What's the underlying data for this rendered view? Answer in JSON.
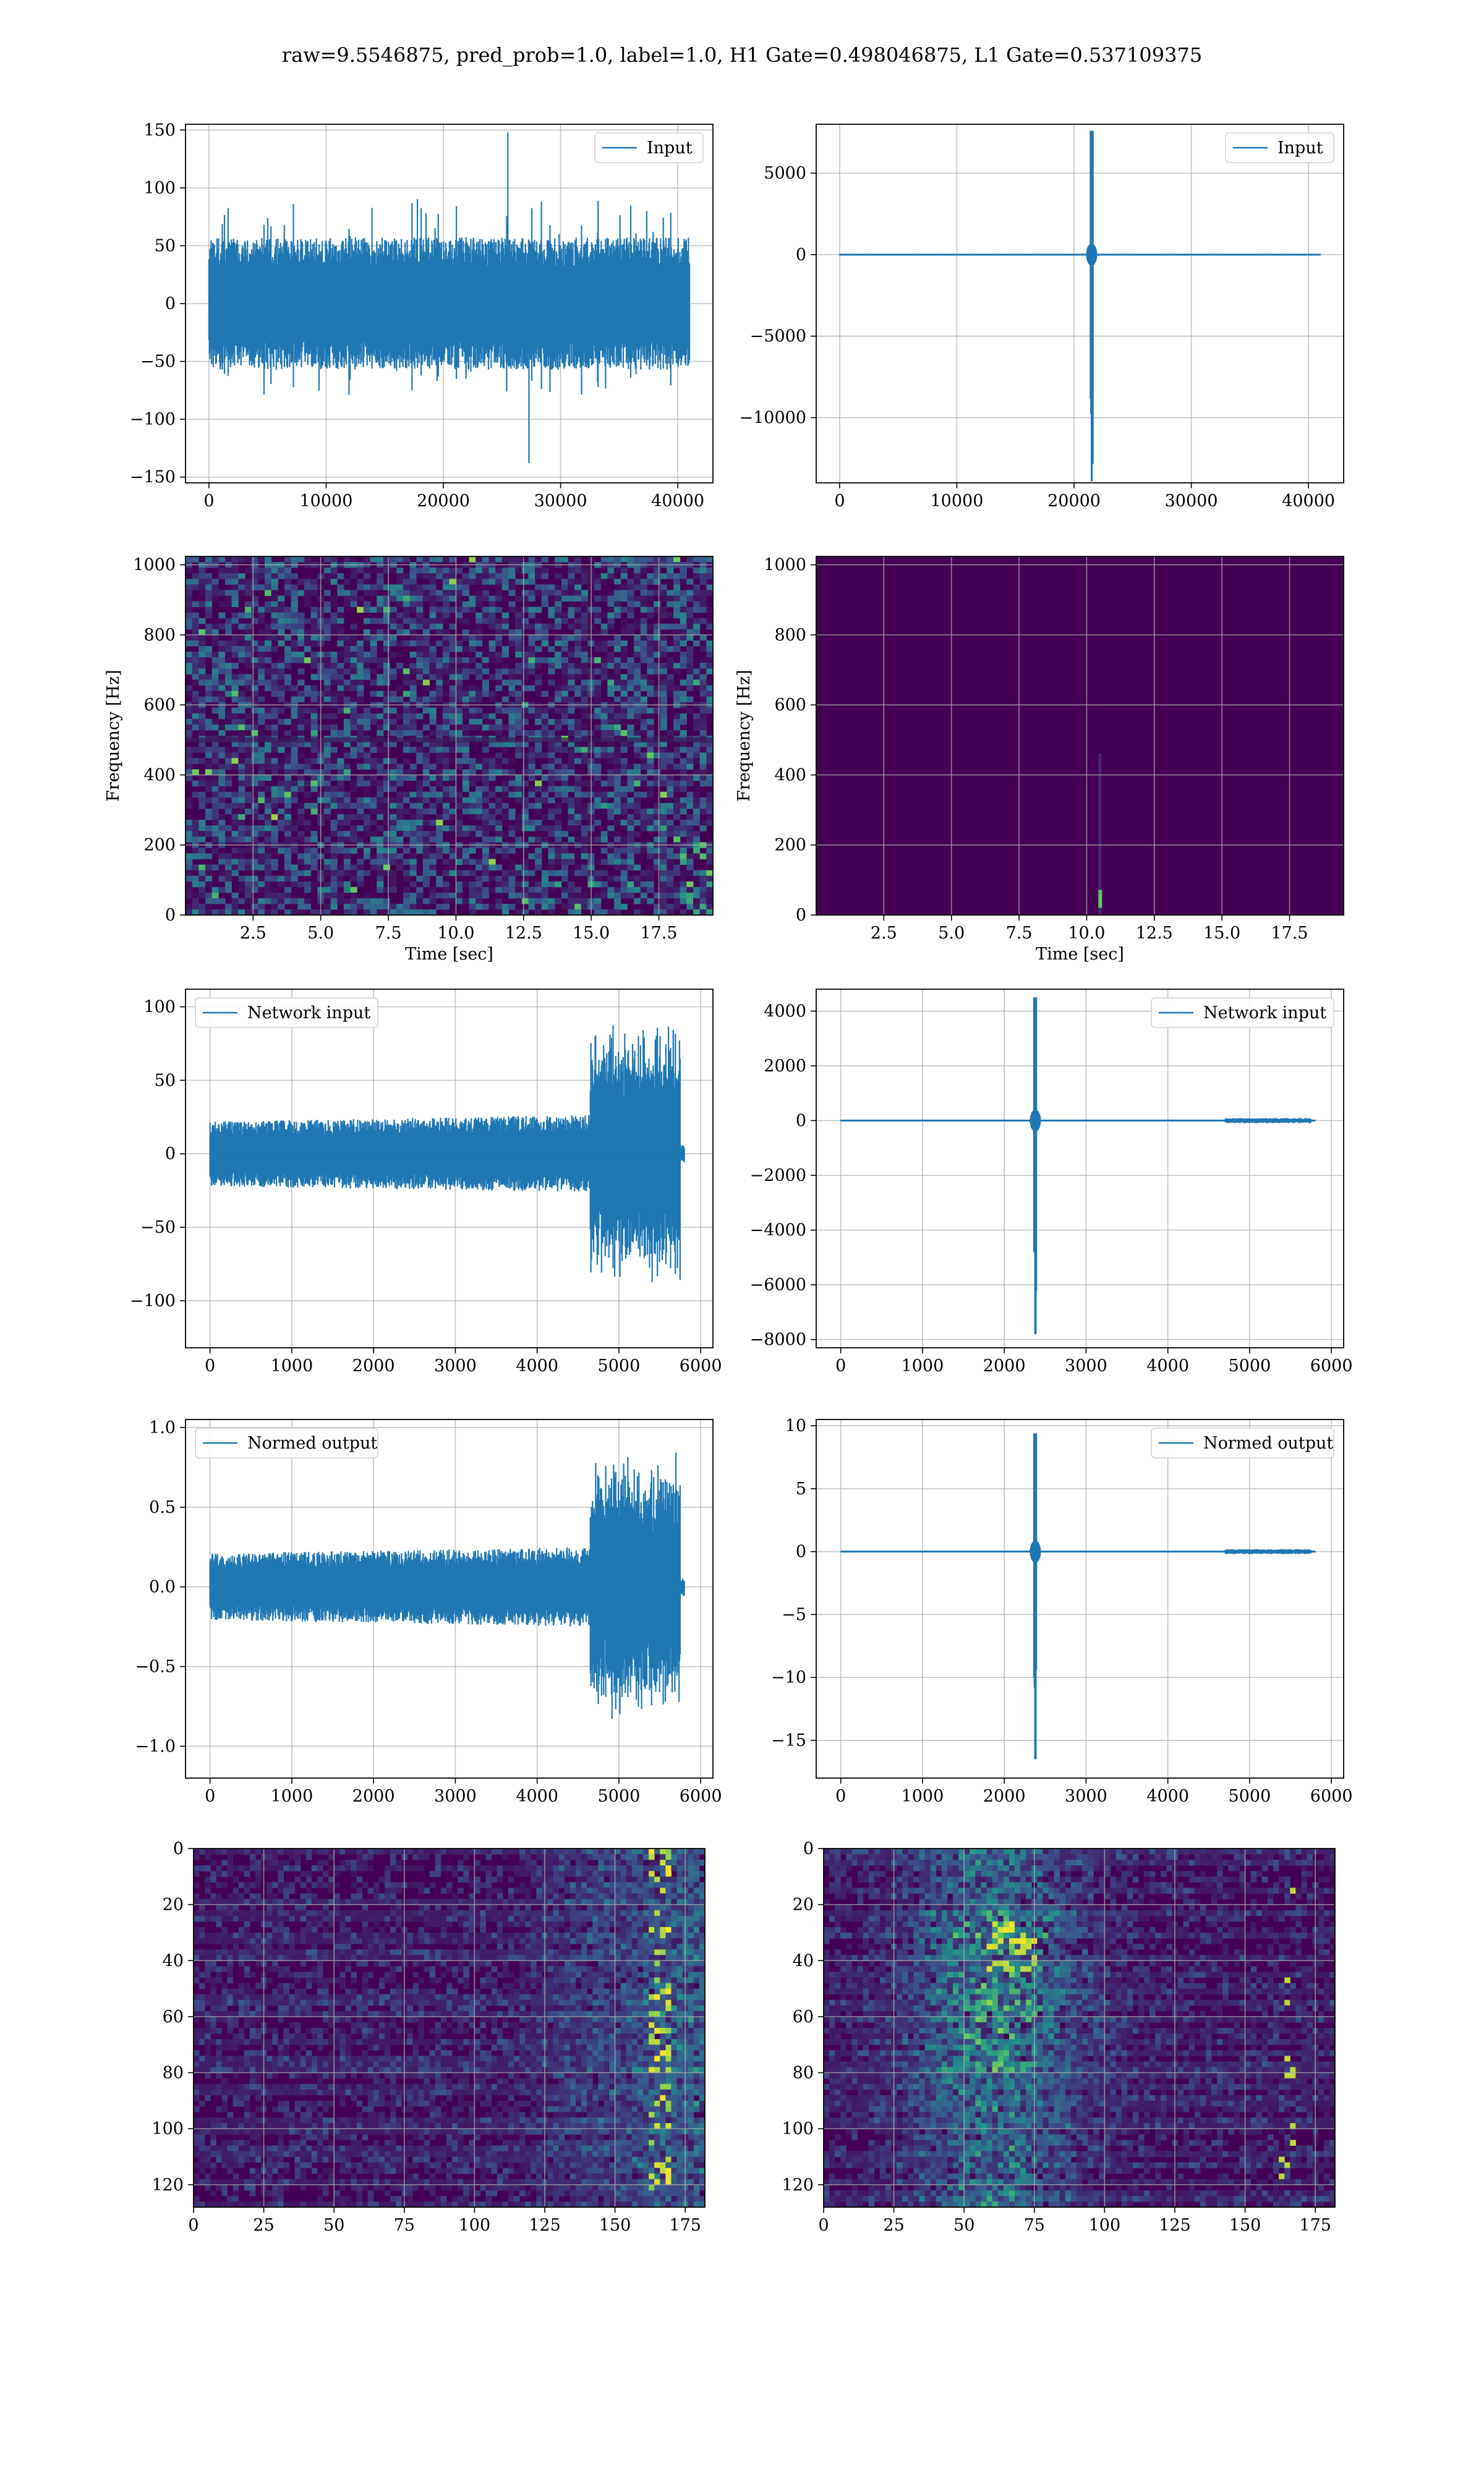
{
  "suptitle": "raw=9.5546875, pred_prob=1.0, label=1.0, H1 Gate=0.498046875, L1 Gate=0.537109375",
  "colors": {
    "series": "#1f77b4",
    "grid": "#b0b0b0",
    "spec_bg": "#440154"
  },
  "chart_data": [
    {
      "type": "line",
      "title": "",
      "legend": "Input",
      "legend_loc": "upper right",
      "xlim": [
        -2000,
        43000
      ],
      "ylim": [
        -155,
        155
      ],
      "xticks": [
        0,
        10000,
        20000,
        30000,
        40000
      ],
      "yticks": [
        -150,
        -100,
        -50,
        0,
        50,
        100,
        150
      ],
      "xlabel": "",
      "ylabel": "",
      "signal": {
        "kind": "noise",
        "x_range": [
          0,
          41000
        ],
        "sigma": 22,
        "max": 148,
        "min": -138
      }
    },
    {
      "type": "line",
      "title": "",
      "legend": "Input",
      "legend_loc": "upper right",
      "xlim": [
        -2000,
        43000
      ],
      "ylim": [
        -14000,
        8000
      ],
      "xticks": [
        0,
        10000,
        20000,
        30000,
        40000
      ],
      "yticks": [
        -10000,
        -5000,
        0,
        5000
      ],
      "xlabel": "",
      "ylabel": "",
      "signal": {
        "kind": "spike",
        "x_range": [
          0,
          41000
        ],
        "spike_x": 21500,
        "max": 7600,
        "min": -13900
      }
    },
    {
      "type": "heatmap",
      "title": "",
      "xlabel": "Time [sec]",
      "ylabel": "Frequency [Hz]",
      "xlim": [
        0,
        19.5
      ],
      "ylim": [
        0,
        1024
      ],
      "xticks": [
        2.5,
        5.0,
        7.5,
        10.0,
        12.5,
        15.0,
        17.5
      ],
      "yticks": [
        0,
        200,
        400,
        600,
        800,
        1000
      ],
      "colormap": "viridis",
      "pattern": "noise"
    },
    {
      "type": "heatmap",
      "title": "",
      "xlabel": "Time [sec]",
      "ylabel": "Frequency [Hz]",
      "xlim": [
        0,
        19.5
      ],
      "ylim": [
        0,
        1024
      ],
      "xticks": [
        2.5,
        5.0,
        7.5,
        10.0,
        12.5,
        15.0,
        17.5
      ],
      "yticks": [
        0,
        200,
        400,
        600,
        800,
        1000
      ],
      "colormap": "viridis",
      "pattern": "spike",
      "spike_time": 10.5
    },
    {
      "type": "line",
      "title": "",
      "legend": "Network input",
      "legend_loc": "upper left",
      "xlim": [
        -300,
        6150
      ],
      "ylim": [
        -132,
        112
      ],
      "xticks": [
        0,
        1000,
        2000,
        3000,
        4000,
        5000,
        6000
      ],
      "yticks": [
        -100,
        -50,
        0,
        50,
        100
      ],
      "xlabel": "",
      "ylabel": "",
      "signal": {
        "kind": "chirp",
        "x_range": [
          0,
          5800
        ],
        "burst_start": 4650,
        "burst_end": 5750,
        "max": 100,
        "min": -119
      }
    },
    {
      "type": "line",
      "title": "",
      "legend": "Network input",
      "legend_loc": "upper right",
      "xlim": [
        -300,
        6150
      ],
      "ylim": [
        -8300,
        4800
      ],
      "xticks": [
        0,
        1000,
        2000,
        3000,
        4000,
        5000,
        6000
      ],
      "yticks": [
        -8000,
        -6000,
        -4000,
        -2000,
        0,
        2000,
        4000
      ],
      "xlabel": "",
      "ylabel": "",
      "signal": {
        "kind": "spike",
        "x_range": [
          0,
          5800
        ],
        "spike_x": 2380,
        "max": 4500,
        "min": -7800
      }
    },
    {
      "type": "line",
      "title": "",
      "legend": "Normed output",
      "legend_loc": "upper left",
      "xlim": [
        -300,
        6150
      ],
      "ylim": [
        -1.2,
        1.05
      ],
      "xticks": [
        0,
        1000,
        2000,
        3000,
        4000,
        5000,
        6000
      ],
      "yticks": [
        -1.0,
        -0.5,
        0.0,
        0.5,
        1.0
      ],
      "xlabel": "",
      "ylabel": "",
      "signal": {
        "kind": "chirp",
        "x_range": [
          0,
          5800
        ],
        "burst_start": 4650,
        "burst_end": 5750,
        "max": 0.95,
        "min": -1.12
      }
    },
    {
      "type": "line",
      "title": "",
      "legend": "Normed output",
      "legend_loc": "upper right",
      "xlim": [
        -300,
        6150
      ],
      "ylim": [
        -18,
        10.5
      ],
      "xticks": [
        0,
        1000,
        2000,
        3000,
        4000,
        5000,
        6000
      ],
      "yticks": [
        -15,
        -10,
        -5,
        0,
        5,
        10
      ],
      "xlabel": "",
      "ylabel": "",
      "signal": {
        "kind": "spike",
        "x_range": [
          0,
          5800
        ],
        "spike_x": 2380,
        "max": 9.4,
        "min": -16.5
      }
    },
    {
      "type": "heatmap",
      "title": "",
      "xlabel": "",
      "ylabel": "",
      "xlim": [
        0,
        182
      ],
      "ylim": [
        128,
        0
      ],
      "xticks": [
        0,
        25,
        50,
        75,
        100,
        125,
        150,
        175
      ],
      "yticks": [
        0,
        20,
        40,
        60,
        80,
        100,
        120
      ],
      "colormap": "viridis",
      "pattern": "features_late"
    },
    {
      "type": "heatmap",
      "title": "",
      "xlabel": "",
      "ylabel": "",
      "xlim": [
        0,
        182
      ],
      "ylim": [
        128,
        0
      ],
      "xticks": [
        0,
        25,
        50,
        75,
        100,
        125,
        150,
        175
      ],
      "yticks": [
        0,
        20,
        40,
        60,
        80,
        100,
        120
      ],
      "colormap": "viridis",
      "pattern": "features_mid"
    }
  ]
}
